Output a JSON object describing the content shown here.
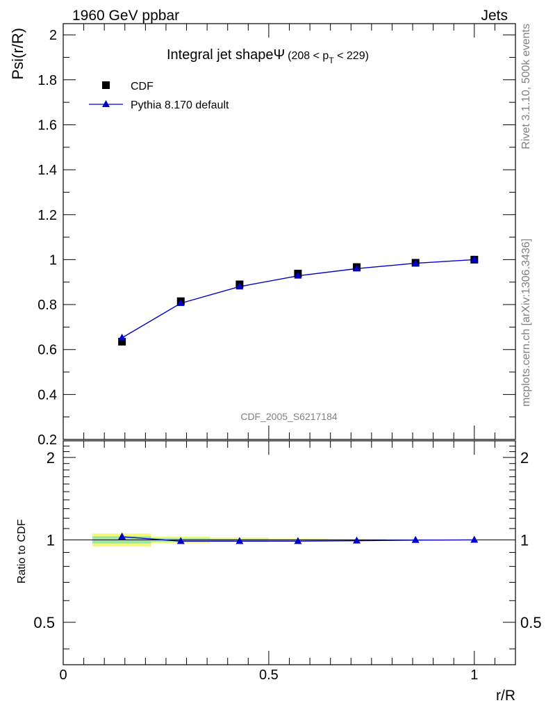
{
  "header": {
    "left": "1960 GeV ppbar",
    "right": "Jets"
  },
  "side_labels": {
    "rivet": "Rivet 3.1.10,  500k events",
    "mcplots": "mcplots.cern.ch [arXiv:1306.3436]"
  },
  "analysis_id": "CDF_2005_S6217184",
  "chart_data": [
    {
      "type": "scatter",
      "panel": "main",
      "title": "Integral jet shapeΨ",
      "title_suffix": "(208 < p",
      "title_sub": "T",
      "title_end": " < 229)",
      "ylabel": "Psi(r/R)",
      "xlabel": "",
      "xlim": [
        0,
        1.1
      ],
      "ylim": [
        0.2,
        2.05
      ],
      "yticks": [
        "0.2",
        "0.4",
        "0.6",
        "0.8",
        "1",
        "1.2",
        "1.4",
        "1.6",
        "1.8",
        "2"
      ],
      "legend_placement": "top-left",
      "series": [
        {
          "name": "CDF",
          "marker": "square",
          "color": "#000000",
          "x": [
            0.143,
            0.286,
            0.429,
            0.571,
            0.714,
            0.857,
            1.0
          ],
          "y": [
            0.635,
            0.815,
            0.89,
            0.938,
            0.967,
            0.986,
            1.0
          ]
        },
        {
          "name": "Pythia 8.170 default",
          "marker": "triangle",
          "color": "#0000cc",
          "x": [
            0.143,
            0.286,
            0.429,
            0.571,
            0.714,
            0.857,
            1.0
          ],
          "y": [
            0.652,
            0.806,
            0.88,
            0.928,
            0.96,
            0.984,
            1.0
          ]
        }
      ]
    },
    {
      "type": "line",
      "panel": "ratio",
      "ylabel": "Ratio to CDF",
      "xlabel": "r/R",
      "xlim": [
        0,
        1.1
      ],
      "ylim": [
        0.35,
        2.3
      ],
      "yticks": [
        "0.5",
        "1",
        "2"
      ],
      "xticks": [
        "0",
        "0.5",
        "1"
      ],
      "band_inner_color": "#9ae6a0",
      "band_outer_color": "#f2f97a",
      "bands": [
        {
          "x0": 0.071,
          "x1": 0.214,
          "inner": 0.03,
          "outer": 0.055
        },
        {
          "x0": 0.214,
          "x1": 0.357,
          "inner": 0.015,
          "outer": 0.028
        },
        {
          "x0": 0.357,
          "x1": 0.5,
          "inner": 0.01,
          "outer": 0.02
        },
        {
          "x0": 0.5,
          "x1": 0.643,
          "inner": 0.006,
          "outer": 0.012
        },
        {
          "x0": 0.643,
          "x1": 0.786,
          "inner": 0.004,
          "outer": 0.008
        },
        {
          "x0": 0.786,
          "x1": 0.929,
          "inner": 0.002,
          "outer": 0.004
        },
        {
          "x0": 0.929,
          "x1": 1.071,
          "inner": 0.001,
          "outer": 0.002
        }
      ],
      "series": [
        {
          "name": "Pythia 8.170 default",
          "color": "#0000cc",
          "x": [
            0.143,
            0.286,
            0.429,
            0.571,
            0.714,
            0.857,
            1.0
          ],
          "y": [
            1.027,
            0.989,
            0.989,
            0.989,
            0.993,
            0.998,
            1.0
          ]
        }
      ]
    }
  ]
}
